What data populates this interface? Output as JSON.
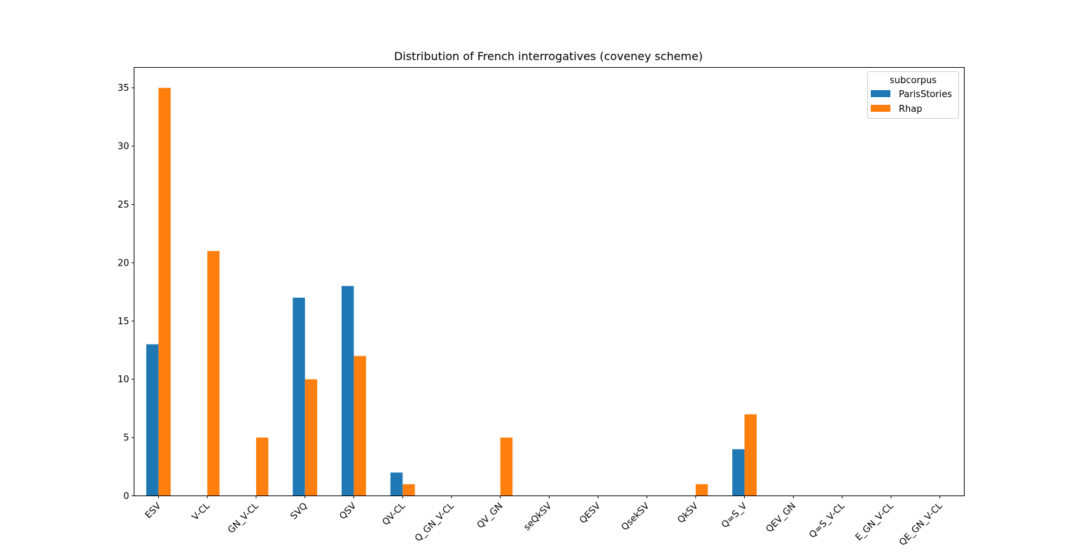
{
  "chart_data": {
    "type": "bar",
    "title": "Distribution of French interrogatives  (coveney scheme)",
    "xlabel": "",
    "ylabel": "",
    "categories": [
      "ESV",
      "V-CL",
      "GN_V-CL",
      "SVQ",
      "QSV",
      "QV-CL",
      "Q_GN_V-CL",
      "QV_GN",
      "seQkSV",
      "QESV",
      "QsekSV",
      "QkSV",
      "Q=S_V",
      "QEV_GN",
      "Q=S_V-CL",
      "E_GN_V-CL",
      "QE_GN_V-CL"
    ],
    "series": [
      {
        "name": "ParisStories",
        "color": "#1f77b4",
        "values": [
          13,
          0,
          0,
          17,
          18,
          2,
          0,
          0,
          0,
          0,
          0,
          0,
          4,
          0,
          0,
          0,
          0
        ]
      },
      {
        "name": "Rhap",
        "color": "#ff7f0e",
        "values": [
          35,
          21,
          5,
          10,
          12,
          1,
          0,
          5,
          0,
          0,
          0,
          1,
          7,
          0,
          0,
          0,
          0
        ]
      }
    ],
    "ylim": [
      0,
      36.75
    ],
    "yticks": [
      0,
      5,
      10,
      15,
      20,
      25,
      30,
      35
    ],
    "legend": {
      "title": "subcorpus",
      "placement": "top-right"
    },
    "grid": false
  }
}
